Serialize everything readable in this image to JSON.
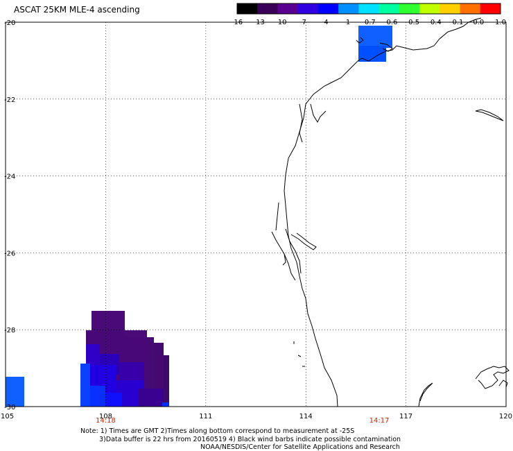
{
  "title": "ASCAT 25KM MLE-4 ascending",
  "colorbar": {
    "labels": [
      "-16",
      "-13",
      "-10",
      "-7",
      "-4",
      "-1",
      "-0.7",
      "-0.6",
      "-0.5",
      "-0.4",
      "-0.1",
      "0.0",
      "1.0"
    ],
    "colors": [
      "#000000",
      "#3a0058",
      "#5a0090",
      "#3000e0",
      "#0000ff",
      "#0090ff",
      "#00e0ff",
      "#00ffa0",
      "#30ff30",
      "#c0ff00",
      "#ffd000",
      "#ff7000",
      "#ff0000"
    ]
  },
  "axes": {
    "lat_labels": [
      "-20",
      "-22",
      "-24",
      "-26",
      "-28",
      "-30"
    ],
    "lon_labels": [
      "105",
      "108",
      "111",
      "114",
      "117",
      "120"
    ],
    "lat_values": [
      -20,
      -22,
      -24,
      -26,
      -28,
      -30
    ],
    "lon_values": [
      105,
      108,
      111,
      114,
      117,
      120
    ],
    "lat_range": [
      -30,
      -20
    ],
    "lon_range": [
      105,
      120
    ]
  },
  "times": [
    {
      "label": "14:18",
      "lon": 108
    },
    {
      "label": "14:17",
      "lon": 116.2
    }
  ],
  "notes": {
    "line1": "Note: 1) Times are GMT 2)Times along bottom correspond to measurement at -25S",
    "line2": "3)Data buffer is 22 hrs from 20160519 4) Black wind barbs indicate possible contamination",
    "line3": "NOAA/NESDIS/Center for Satellite Applications and Research"
  }
}
